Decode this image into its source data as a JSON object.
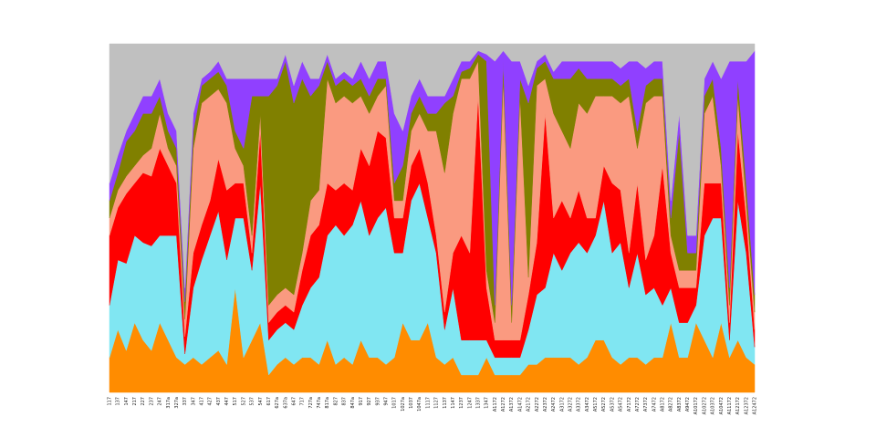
{
  "chart_data": {
    "type": "area",
    "stacked": true,
    "categories": [
      "117",
      "137",
      "147",
      "217",
      "227",
      "237",
      "247",
      "317a",
      "327a",
      "337",
      "347",
      "417",
      "427",
      "437",
      "447",
      "517",
      "527",
      "537",
      "547",
      "617",
      "627a",
      "637a",
      "647",
      "717",
      "727a",
      "747a",
      "817a",
      "827",
      "837",
      "847a",
      "917",
      "927",
      "937",
      "947",
      "1017",
      "1027a",
      "1037",
      "1047a",
      "1117",
      "1127",
      "1137",
      "1147",
      "1237",
      "1247",
      "1337",
      "1347",
      "A1172",
      "A1272",
      "A1372",
      "A1472",
      "A2172",
      "A2272",
      "A2372",
      "A2472",
      "A3172",
      "A3272",
      "A3372",
      "A3472",
      "A5172",
      "A5272",
      "A5372",
      "A5472",
      "A7172",
      "A7272",
      "A7372",
      "A7472",
      "A8172",
      "A8272",
      "A8372",
      "A9472",
      "A10172",
      "A10272",
      "A10372",
      "A10472",
      "A11172",
      "A12172",
      "A12372",
      "A12472"
    ],
    "ylim": [
      0,
      100
    ],
    "series": [
      {
        "color": "#ff8c00",
        "values": [
          10,
          18,
          12,
          20,
          15,
          12,
          20,
          15,
          10,
          8,
          10,
          8,
          10,
          12,
          8,
          30,
          10,
          15,
          20,
          5,
          8,
          10,
          8,
          10,
          10,
          8,
          15,
          8,
          10,
          8,
          15,
          10,
          10,
          8,
          10,
          20,
          15,
          15,
          20,
          10,
          8,
          10,
          5,
          5,
          5,
          10,
          5,
          5,
          5,
          5,
          8,
          8,
          10,
          10,
          10,
          10,
          8,
          10,
          15,
          15,
          10,
          8,
          10,
          10,
          8,
          10,
          10,
          20,
          10,
          10,
          20,
          15,
          10,
          20,
          10,
          15,
          10,
          8
        ]
      },
      {
        "color": "#80e6f2",
        "values": [
          15,
          20,
          25,
          25,
          28,
          30,
          25,
          30,
          35,
          3,
          20,
          30,
          35,
          40,
          30,
          20,
          40,
          20,
          40,
          10,
          10,
          10,
          10,
          15,
          20,
          25,
          30,
          40,
          35,
          40,
          40,
          35,
          40,
          45,
          30,
          20,
          40,
          45,
          30,
          30,
          10,
          20,
          10,
          10,
          10,
          5,
          5,
          5,
          5,
          5,
          10,
          20,
          20,
          30,
          25,
          30,
          35,
          30,
          30,
          40,
          30,
          35,
          20,
          30,
          20,
          20,
          15,
          10,
          10,
          10,
          5,
          30,
          40,
          30,
          5,
          40,
          30,
          5
        ]
      },
      {
        "color": "#ff0000",
        "values": [
          20,
          15,
          20,
          15,
          20,
          20,
          25,
          20,
          15,
          5,
          10,
          10,
          10,
          15,
          20,
          10,
          10,
          5,
          15,
          5,
          5,
          5,
          5,
          10,
          15,
          15,
          15,
          10,
          15,
          10,
          15,
          20,
          25,
          20,
          10,
          10,
          10,
          10,
          10,
          5,
          5,
          10,
          30,
          25,
          70,
          15,
          5,
          5,
          5,
          5,
          10,
          15,
          50,
          10,
          20,
          10,
          15,
          10,
          5,
          10,
          20,
          15,
          10,
          20,
          10,
          15,
          40,
          10,
          10,
          10,
          5,
          15,
          10,
          10,
          5,
          20,
          10,
          5
        ]
      },
      {
        "color": "#fa9a80",
        "values": [
          5,
          5,
          5,
          5,
          5,
          8,
          10,
          5,
          5,
          5,
          30,
          35,
          30,
          20,
          25,
          10,
          5,
          5,
          5,
          5,
          5,
          5,
          5,
          5,
          10,
          10,
          30,
          25,
          25,
          25,
          15,
          15,
          10,
          15,
          5,
          5,
          10,
          10,
          15,
          30,
          40,
          40,
          45,
          50,
          10,
          5,
          5,
          75,
          5,
          70,
          5,
          45,
          10,
          30,
          20,
          20,
          25,
          30,
          35,
          20,
          25,
          25,
          45,
          10,
          45,
          40,
          20,
          5,
          5,
          5,
          5,
          20,
          25,
          5,
          5,
          10,
          5,
          5
        ]
      },
      {
        "color": "#808000",
        "values": [
          5,
          5,
          10,
          10,
          12,
          10,
          5,
          5,
          5,
          5,
          5,
          5,
          5,
          5,
          5,
          5,
          5,
          40,
          5,
          60,
          60,
          65,
          55,
          50,
          30,
          30,
          5,
          5,
          5,
          5,
          5,
          5,
          5,
          2,
          5,
          10,
          5,
          5,
          5,
          5,
          20,
          5,
          2,
          3,
          2,
          60,
          5,
          5,
          5,
          5,
          50,
          5,
          5,
          10,
          15,
          20,
          10,
          10,
          5,
          5,
          5,
          5,
          5,
          5,
          5,
          5,
          5,
          5,
          40,
          5,
          5,
          5,
          5,
          5,
          5,
          5,
          5,
          5
        ]
      },
      {
        "color": "#9040ff",
        "values": [
          5,
          5,
          3,
          5,
          5,
          5,
          5,
          5,
          5,
          4,
          5,
          2,
          2,
          3,
          2,
          15,
          20,
          5,
          5,
          5,
          2,
          2,
          5,
          5,
          5,
          2,
          2,
          2,
          2,
          2,
          5,
          5,
          5,
          5,
          20,
          10,
          5,
          5,
          5,
          5,
          2,
          5,
          3,
          2,
          1,
          2,
          70,
          3,
          70,
          5,
          5,
          2,
          2,
          2,
          5,
          5,
          2,
          5,
          5,
          5,
          5,
          5,
          5,
          20,
          5,
          5,
          5,
          5,
          5,
          5,
          5,
          5,
          5,
          20,
          65,
          5,
          35,
          70
        ]
      },
      {
        "color": "#c0c0c0",
        "values": [
          40,
          32,
          25,
          20,
          15,
          15,
          10,
          20,
          25,
          70,
          20,
          10,
          8,
          5,
          10,
          10,
          10,
          10,
          10,
          10,
          10,
          3,
          12,
          5,
          10,
          10,
          3,
          10,
          8,
          10,
          5,
          10,
          5,
          5,
          20,
          25,
          15,
          10,
          15,
          15,
          15,
          10,
          5,
          5,
          2,
          3,
          5,
          2,
          5,
          5,
          12,
          5,
          3,
          8,
          5,
          5,
          5,
          5,
          5,
          5,
          5,
          7,
          5,
          5,
          7,
          5,
          5,
          45,
          20,
          55,
          55,
          10,
          5,
          10,
          5,
          5,
          5,
          2
        ]
      }
    ]
  }
}
